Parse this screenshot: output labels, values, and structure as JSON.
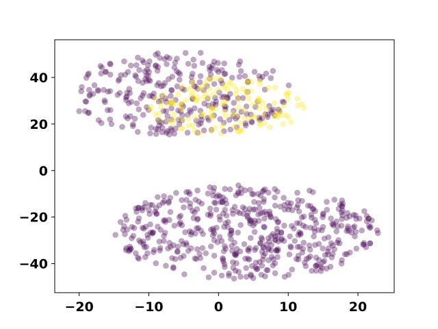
{
  "chart_data": {
    "type": "scatter",
    "title": "",
    "xlabel": "",
    "ylabel": "",
    "xlim": [
      -23.5,
      25.2
    ],
    "ylim": [
      -52.5,
      56.2
    ],
    "xticks": [
      -20,
      -10,
      0,
      10,
      20
    ],
    "yticks": [
      -40,
      -20,
      0,
      20,
      40
    ],
    "xtick_labels": [
      "−20",
      "−10",
      "0",
      "10",
      "20"
    ],
    "ytick_labels": [
      "−40",
      "−20",
      "0",
      "20",
      "40"
    ],
    "grid": false,
    "legend": "none",
    "marker_opacity": 0.35,
    "colors": {
      "class_0": "#440154",
      "class_1": "#fde725"
    },
    "clusters": [
      {
        "class": 0,
        "count": 290,
        "x_range": [
          -21.5,
          10.5
        ],
        "y_range": [
          15,
          51
        ]
      },
      {
        "class": 1,
        "count": 140,
        "x_range": [
          -10,
          12.5
        ],
        "y_range": [
          15,
          40
        ]
      },
      {
        "class": 0,
        "count": 520,
        "x_range": [
          -15,
          23
        ],
        "y_range": [
          -47,
          -6
        ]
      }
    ]
  }
}
